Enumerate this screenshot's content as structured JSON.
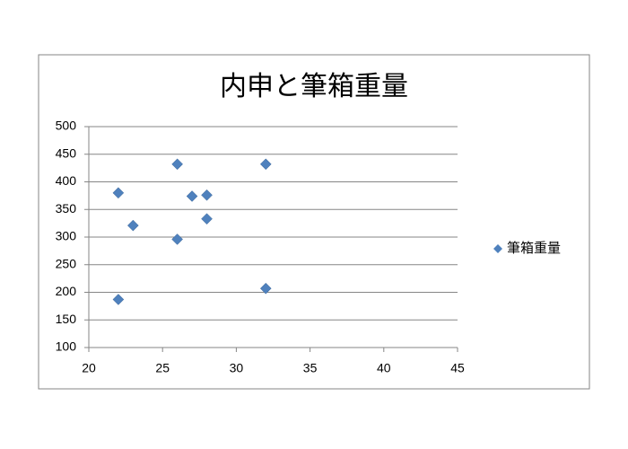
{
  "chart_data": {
    "type": "scatter",
    "title": "内申と筆箱重量",
    "series": [
      {
        "name": "筆箱重量",
        "color": "#4f81bd",
        "x": [
          22,
          23,
          22,
          26,
          26,
          27,
          28,
          28,
          32,
          32
        ],
        "values": [
          380,
          321,
          187,
          432,
          296,
          374,
          376,
          333,
          432,
          207
        ]
      }
    ],
    "xlim": [
      20,
      45
    ],
    "xticks": [
      20,
      25,
      30,
      35,
      40,
      45
    ],
    "ylim": [
      100,
      500
    ],
    "yticks": [
      100,
      150,
      200,
      250,
      300,
      350,
      400,
      450,
      500
    ],
    "grid": true,
    "legend": "right"
  }
}
